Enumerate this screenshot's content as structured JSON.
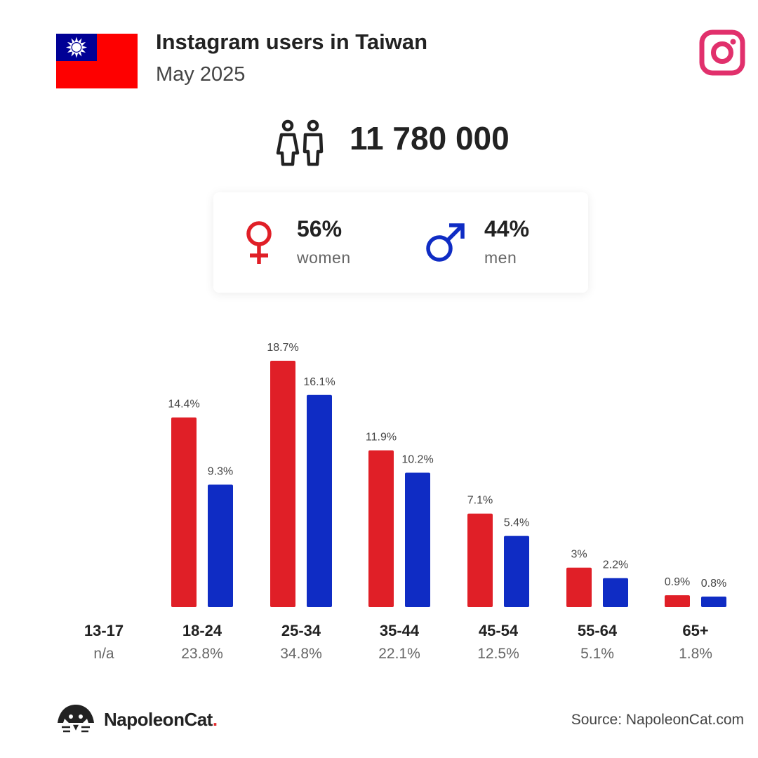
{
  "header": {
    "title": "Instagram users in Taiwan",
    "subtitle": "May 2025"
  },
  "icons": {
    "flag": "taiwan-flag-icon",
    "brand": "instagram-icon",
    "people": "people-icon",
    "female": "female-symbol-icon",
    "male": "male-symbol-icon",
    "logo": "napoleoncat-logo-icon"
  },
  "colors": {
    "women": "#e01f27",
    "men": "#0f2cc4",
    "instagram": "#e1306c",
    "flag_red": "#fe0000",
    "flag_blue": "#000095"
  },
  "total": {
    "value": "11 780 000"
  },
  "gender": {
    "women": {
      "pct": "56%",
      "label": "women"
    },
    "men": {
      "pct": "44%",
      "label": "men"
    }
  },
  "chart_data": {
    "type": "bar",
    "categories": [
      "13-17",
      "18-24",
      "25-34",
      "35-44",
      "45-54",
      "55-64",
      "65+"
    ],
    "category_totals": [
      "n/a",
      "23.8%",
      "34.8%",
      "22.1%",
      "12.5%",
      "5.1%",
      "1.8%"
    ],
    "series": [
      {
        "name": "women",
        "values": [
          null,
          14.4,
          18.7,
          11.9,
          7.1,
          3,
          0.9
        ],
        "labels": [
          "",
          "14.4%",
          "18.7%",
          "11.9%",
          "7.1%",
          "3%",
          "0.9%"
        ]
      },
      {
        "name": "men",
        "values": [
          null,
          9.3,
          16.1,
          10.2,
          5.4,
          2.2,
          0.8
        ],
        "labels": [
          "",
          "9.3%",
          "16.1%",
          "10.2%",
          "5.4%",
          "2.2%",
          "0.8%"
        ]
      }
    ],
    "ylim": [
      0,
      18.7
    ],
    "grid": false,
    "legend": "none"
  },
  "footer": {
    "brand_name": "NapoleonCat",
    "brand_dot": ".",
    "source": "Source: NapoleonCat.com"
  }
}
